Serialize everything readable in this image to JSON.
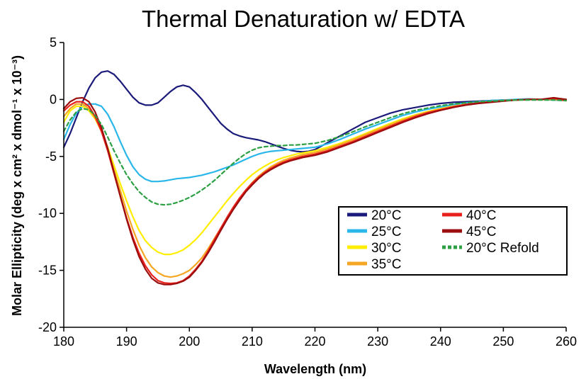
{
  "chart_data": {
    "type": "line",
    "title": "Thermal Denaturation w/ EDTA",
    "xlabel": "Wavelength (nm)",
    "ylabel": "Molar Ellipticity (deg x cm² x dmol⁻¹ x 10⁻³)",
    "xlim": [
      180,
      260
    ],
    "ylim": [
      -20,
      5
    ],
    "xticks": [
      180,
      190,
      200,
      210,
      220,
      230,
      240,
      250,
      260
    ],
    "yticks": [
      5,
      0,
      -5,
      -10,
      -15,
      -20
    ],
    "grid": false,
    "legend_position": "center-right",
    "series": [
      {
        "name": "20°C",
        "color": "#1a1a7a",
        "dash": false,
        "x": [
          180,
          181,
          182,
          183,
          184,
          185,
          186,
          187,
          188,
          189,
          190,
          191,
          192,
          193,
          194,
          195,
          196,
          197,
          198,
          199,
          200,
          201,
          202,
          203,
          204,
          205,
          206,
          207,
          208,
          209,
          210,
          211,
          212,
          213,
          214,
          215,
          216,
          217,
          218,
          219,
          220,
          222,
          224,
          226,
          228,
          230,
          232,
          234,
          236,
          238,
          240,
          242,
          244,
          246,
          248,
          250,
          252,
          254,
          256,
          258,
          260
        ],
        "y": [
          -4.2,
          -3.0,
          -1.6,
          -0.2,
          1.0,
          1.9,
          2.4,
          2.5,
          2.2,
          1.6,
          0.9,
          0.2,
          -0.3,
          -0.5,
          -0.5,
          -0.3,
          0.2,
          0.7,
          1.1,
          1.25,
          1.1,
          0.6,
          0.0,
          -0.7,
          -1.4,
          -2.1,
          -2.6,
          -3.0,
          -3.2,
          -3.35,
          -3.45,
          -3.55,
          -3.7,
          -3.9,
          -4.1,
          -4.3,
          -4.45,
          -4.55,
          -4.6,
          -4.55,
          -4.4,
          -3.8,
          -3.2,
          -2.6,
          -2.0,
          -1.6,
          -1.2,
          -0.9,
          -0.7,
          -0.5,
          -0.35,
          -0.25,
          -0.2,
          -0.15,
          -0.1,
          -0.05,
          -0.05,
          0.0,
          0.0,
          0.0,
          0.0
        ]
      },
      {
        "name": "25°C",
        "color": "#29b6e8",
        "dash": false,
        "x": [
          180,
          181,
          182,
          183,
          184,
          185,
          186,
          187,
          188,
          189,
          190,
          191,
          192,
          193,
          194,
          195,
          196,
          197,
          198,
          199,
          200,
          201,
          202,
          203,
          204,
          205,
          206,
          207,
          208,
          209,
          210,
          211,
          212,
          213,
          214,
          215,
          216,
          217,
          218,
          219,
          220,
          222,
          224,
          226,
          228,
          230,
          232,
          234,
          236,
          238,
          240,
          242,
          244,
          246,
          248,
          250,
          252,
          254,
          256,
          258,
          260
        ],
        "y": [
          -3.5,
          -2.2,
          -1.2,
          -0.6,
          -0.4,
          -0.4,
          -0.6,
          -1.3,
          -2.4,
          -3.7,
          -4.9,
          -5.9,
          -6.6,
          -7.0,
          -7.2,
          -7.2,
          -7.15,
          -7.05,
          -6.95,
          -6.9,
          -6.85,
          -6.75,
          -6.65,
          -6.5,
          -6.35,
          -6.15,
          -5.95,
          -5.75,
          -5.5,
          -5.25,
          -5.0,
          -4.8,
          -4.65,
          -4.55,
          -4.5,
          -4.45,
          -4.4,
          -4.35,
          -4.3,
          -4.25,
          -4.2,
          -3.9,
          -3.5,
          -3.05,
          -2.6,
          -2.2,
          -1.8,
          -1.4,
          -1.1,
          -0.85,
          -0.65,
          -0.45,
          -0.3,
          -0.2,
          -0.1,
          -0.05,
          0.0,
          0.05,
          0.0,
          -0.05,
          -0.1
        ]
      },
      {
        "name": "30°C",
        "color": "#ffee00",
        "dash": false,
        "x": [
          180,
          181,
          182,
          183,
          184,
          185,
          186,
          187,
          188,
          189,
          190,
          191,
          192,
          193,
          194,
          195,
          196,
          197,
          198,
          199,
          200,
          201,
          202,
          203,
          204,
          205,
          206,
          207,
          208,
          209,
          210,
          211,
          212,
          213,
          214,
          215,
          216,
          217,
          218,
          219,
          220,
          222,
          224,
          226,
          228,
          230,
          232,
          234,
          236,
          238,
          240,
          242,
          244,
          246,
          248,
          250,
          252,
          254,
          256,
          258,
          260
        ],
        "y": [
          -2.0,
          -1.0,
          -0.6,
          -0.6,
          -1.0,
          -1.7,
          -2.8,
          -4.2,
          -5.8,
          -7.4,
          -8.9,
          -10.3,
          -11.5,
          -12.4,
          -13.0,
          -13.4,
          -13.6,
          -13.6,
          -13.45,
          -13.2,
          -12.8,
          -12.3,
          -11.7,
          -11.0,
          -10.3,
          -9.6,
          -8.9,
          -8.25,
          -7.65,
          -7.1,
          -6.6,
          -6.2,
          -5.85,
          -5.55,
          -5.3,
          -5.1,
          -4.95,
          -4.8,
          -4.7,
          -4.6,
          -4.5,
          -4.2,
          -3.85,
          -3.45,
          -3.0,
          -2.55,
          -2.1,
          -1.7,
          -1.35,
          -1.05,
          -0.8,
          -0.6,
          -0.45,
          -0.3,
          -0.2,
          -0.1,
          -0.05,
          0.0,
          0.0,
          0.0,
          -0.05
        ]
      },
      {
        "name": "35°C",
        "color": "#f5a623",
        "dash": false,
        "x": [
          180,
          181,
          182,
          183,
          184,
          185,
          186,
          187,
          188,
          189,
          190,
          191,
          192,
          193,
          194,
          195,
          196,
          197,
          198,
          199,
          200,
          201,
          202,
          203,
          204,
          205,
          206,
          207,
          208,
          209,
          210,
          211,
          212,
          213,
          214,
          215,
          216,
          217,
          218,
          219,
          220,
          222,
          224,
          226,
          228,
          230,
          232,
          234,
          236,
          238,
          240,
          242,
          244,
          246,
          248,
          250,
          252,
          254,
          256,
          258,
          260
        ],
        "y": [
          -1.5,
          -0.8,
          -0.4,
          -0.4,
          -0.8,
          -1.6,
          -2.8,
          -4.4,
          -6.2,
          -8.0,
          -9.8,
          -11.4,
          -12.8,
          -13.9,
          -14.7,
          -15.2,
          -15.5,
          -15.6,
          -15.5,
          -15.3,
          -15.0,
          -14.5,
          -13.9,
          -13.1,
          -12.2,
          -11.3,
          -10.4,
          -9.5,
          -8.7,
          -7.95,
          -7.3,
          -6.75,
          -6.3,
          -5.9,
          -5.6,
          -5.35,
          -5.15,
          -5.0,
          -4.85,
          -4.75,
          -4.65,
          -4.35,
          -3.95,
          -3.55,
          -3.1,
          -2.65,
          -2.2,
          -1.8,
          -1.4,
          -1.1,
          -0.85,
          -0.6,
          -0.45,
          -0.3,
          -0.2,
          -0.1,
          -0.05,
          0.0,
          0.0,
          0.0,
          -0.1
        ]
      },
      {
        "name": "40°C",
        "color": "#e8201c",
        "dash": false,
        "x": [
          180,
          181,
          182,
          183,
          184,
          185,
          186,
          187,
          188,
          189,
          190,
          191,
          192,
          193,
          194,
          195,
          196,
          197,
          198,
          199,
          200,
          201,
          202,
          203,
          204,
          205,
          206,
          207,
          208,
          209,
          210,
          211,
          212,
          213,
          214,
          215,
          216,
          217,
          218,
          219,
          220,
          222,
          224,
          226,
          228,
          230,
          232,
          234,
          236,
          238,
          240,
          242,
          244,
          246,
          248,
          250,
          252,
          254,
          256,
          258,
          260
        ],
        "y": [
          -1.0,
          -0.5,
          -0.2,
          -0.2,
          -0.6,
          -1.5,
          -2.8,
          -4.5,
          -6.5,
          -8.5,
          -10.4,
          -12.1,
          -13.5,
          -14.6,
          -15.4,
          -15.9,
          -16.1,
          -16.15,
          -16.1,
          -15.9,
          -15.5,
          -14.9,
          -14.2,
          -13.3,
          -12.3,
          -11.3,
          -10.35,
          -9.45,
          -8.65,
          -7.95,
          -7.35,
          -6.85,
          -6.4,
          -6.05,
          -5.75,
          -5.5,
          -5.3,
          -5.15,
          -5.0,
          -4.9,
          -4.8,
          -4.5,
          -4.1,
          -3.7,
          -3.25,
          -2.8,
          -2.35,
          -1.9,
          -1.5,
          -1.15,
          -0.9,
          -0.65,
          -0.45,
          -0.3,
          -0.2,
          -0.1,
          -0.05,
          0.0,
          0.0,
          0.1,
          -0.1
        ]
      },
      {
        "name": "45°C",
        "color": "#9b0d0d",
        "dash": false,
        "x": [
          180,
          181,
          182,
          183,
          184,
          185,
          186,
          187,
          188,
          189,
          190,
          191,
          192,
          193,
          194,
          195,
          196,
          197,
          198,
          199,
          200,
          201,
          202,
          203,
          204,
          205,
          206,
          207,
          208,
          209,
          210,
          211,
          212,
          213,
          214,
          215,
          216,
          217,
          218,
          219,
          220,
          222,
          224,
          226,
          228,
          230,
          232,
          234,
          236,
          238,
          240,
          242,
          244,
          246,
          248,
          250,
          252,
          254,
          256,
          258,
          260
        ],
        "y": [
          -0.8,
          -0.2,
          0.1,
          0.15,
          -0.2,
          -1.1,
          -2.5,
          -4.3,
          -6.4,
          -8.5,
          -10.5,
          -12.3,
          -13.8,
          -14.9,
          -15.7,
          -16.1,
          -16.25,
          -16.25,
          -16.15,
          -15.95,
          -15.6,
          -15.0,
          -14.3,
          -13.45,
          -12.5,
          -11.5,
          -10.55,
          -9.65,
          -8.85,
          -8.1,
          -7.5,
          -6.95,
          -6.5,
          -6.15,
          -5.85,
          -5.6,
          -5.4,
          -5.25,
          -5.1,
          -5.0,
          -4.9,
          -4.6,
          -4.2,
          -3.8,
          -3.35,
          -2.9,
          -2.45,
          -2.0,
          -1.6,
          -1.25,
          -0.95,
          -0.7,
          -0.5,
          -0.35,
          -0.25,
          -0.15,
          -0.05,
          0.0,
          0.0,
          0.15,
          0.0
        ]
      },
      {
        "name": "20°C Refold",
        "color": "#2ca043",
        "dash": true,
        "x": [
          180,
          181,
          182,
          183,
          184,
          185,
          186,
          187,
          188,
          189,
          190,
          191,
          192,
          193,
          194,
          195,
          196,
          197,
          198,
          199,
          200,
          201,
          202,
          203,
          204,
          205,
          206,
          207,
          208,
          209,
          210,
          211,
          212,
          213,
          214,
          215,
          216,
          217,
          218,
          219,
          220,
          222,
          224,
          226,
          228,
          230,
          232,
          234,
          236,
          238,
          240,
          242,
          244,
          246,
          248,
          250,
          252,
          254,
          256,
          258,
          260
        ],
        "y": [
          -2.8,
          -1.8,
          -1.1,
          -0.8,
          -0.9,
          -1.4,
          -2.2,
          -3.3,
          -4.5,
          -5.6,
          -6.6,
          -7.4,
          -8.1,
          -8.6,
          -9.0,
          -9.2,
          -9.25,
          -9.2,
          -9.05,
          -8.85,
          -8.6,
          -8.3,
          -7.95,
          -7.55,
          -7.1,
          -6.6,
          -6.1,
          -5.6,
          -5.15,
          -4.75,
          -4.45,
          -4.25,
          -4.15,
          -4.1,
          -4.05,
          -4.05,
          -4.0,
          -4.0,
          -3.95,
          -3.9,
          -3.85,
          -3.6,
          -3.25,
          -2.85,
          -2.4,
          -2.0,
          -1.6,
          -1.25,
          -0.95,
          -0.75,
          -0.55,
          -0.4,
          -0.3,
          -0.2,
          -0.15,
          -0.1,
          -0.05,
          -0.05,
          -0.05,
          -0.05,
          -0.1
        ]
      }
    ]
  }
}
